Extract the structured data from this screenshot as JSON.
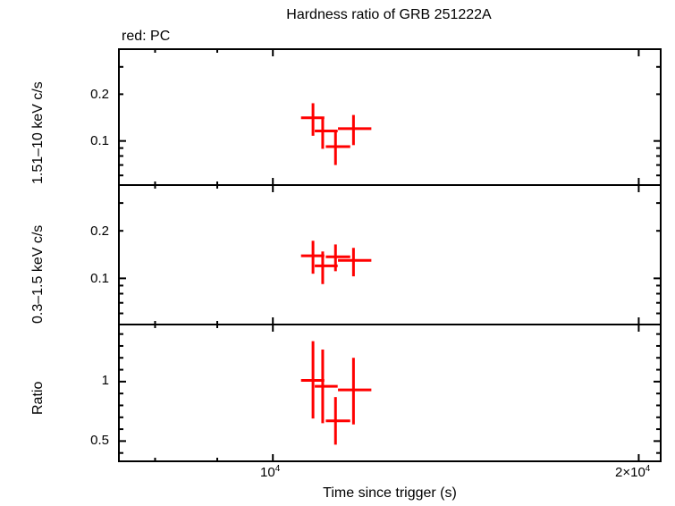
{
  "title": "Hardness ratio of GRB 251222A",
  "subtitle": "red: PC",
  "colors": {
    "data": "#ff0000",
    "axes": "#000000",
    "background": "#ffffff"
  },
  "chart_data": [
    {
      "type": "scatter",
      "panel": "top",
      "title": "Hardness ratio of GRB 251222A",
      "legend": "red: PC",
      "xlabel": "Time since trigger (s)",
      "ylabel": "1.51–10 keV c/s",
      "xscale": "log",
      "yscale": "log",
      "xlim": [
        7470,
        20850
      ],
      "ylim": [
        0.052,
        0.39
      ],
      "yticks": [
        0.1,
        0.2
      ],
      "ytick_labels": [
        "0.1",
        "0.2"
      ],
      "series": [
        {
          "name": "PC",
          "color": "#ff0000",
          "x": [
            10790,
            10990,
            11260,
            11650
          ],
          "xerr_low": [
            10620,
            10900,
            11130,
            11390
          ],
          "xerr_high": [
            10950,
            11230,
            11500,
            11970
          ],
          "y": [
            0.141,
            0.116,
            0.092,
            0.12
          ],
          "yerr_low": [
            0.108,
            0.089,
            0.07,
            0.094
          ],
          "yerr_high": [
            0.175,
            0.143,
            0.114,
            0.147
          ]
        }
      ]
    },
    {
      "type": "scatter",
      "panel": "middle",
      "xlabel": "Time since trigger (s)",
      "ylabel": "0.3–1.5 keV c/s",
      "xscale": "log",
      "yscale": "log",
      "xlim": [
        7470,
        20850
      ],
      "ylim": [
        0.051,
        0.39
      ],
      "yticks": [
        0.1,
        0.2
      ],
      "ytick_labels": [
        "0.1",
        "0.2"
      ],
      "series": [
        {
          "name": "PC",
          "color": "#ff0000",
          "x": [
            10790,
            10990,
            11260,
            11650
          ],
          "xerr_low": [
            10620,
            10900,
            11130,
            11390
          ],
          "xerr_high": [
            10950,
            11230,
            11500,
            11970
          ],
          "y": [
            0.139,
            0.12,
            0.137,
            0.13
          ],
          "yerr_low": [
            0.107,
            0.092,
            0.111,
            0.103
          ],
          "yerr_high": [
            0.173,
            0.148,
            0.164,
            0.156
          ]
        }
      ]
    },
    {
      "type": "scatter",
      "panel": "bottom",
      "xlabel": "Time since trigger (s)",
      "ylabel": "Ratio",
      "xscale": "log",
      "yscale": "linear",
      "xlim": [
        7470,
        20850
      ],
      "ylim": [
        0.33,
        1.48
      ],
      "yticks": [
        0.5,
        1
      ],
      "ytick_labels": [
        "0.5",
        "1"
      ],
      "series": [
        {
          "name": "PC",
          "color": "#ff0000",
          "x": [
            10790,
            10990,
            11260,
            11650
          ],
          "xerr_low": [
            10620,
            10900,
            11130,
            11390
          ],
          "xerr_high": [
            10950,
            11230,
            11500,
            11970
          ],
          "y": [
            1.01,
            0.96,
            0.67,
            0.93
          ],
          "yerr_low": [
            0.69,
            0.65,
            0.47,
            0.64
          ],
          "yerr_high": [
            1.34,
            1.27,
            0.87,
            1.2
          ]
        }
      ]
    }
  ],
  "xaxis": {
    "label": "Time since trigger (s)",
    "ticks": [
      {
        "value": 10000,
        "mantissa": "10",
        "exp": "4"
      },
      {
        "value": 20000,
        "mantissa": "2×10",
        "exp": "4"
      }
    ]
  },
  "yaxis_labels": {
    "top": "1.51–10 keV c/s",
    "middle": "0.3–1.5 keV c/s",
    "bottom": "Ratio"
  },
  "ytick_labels": {
    "top": [
      "0.2",
      "0.1"
    ],
    "middle": [
      "0.2",
      "0.1"
    ],
    "bottom": [
      "1",
      "0.5"
    ]
  }
}
